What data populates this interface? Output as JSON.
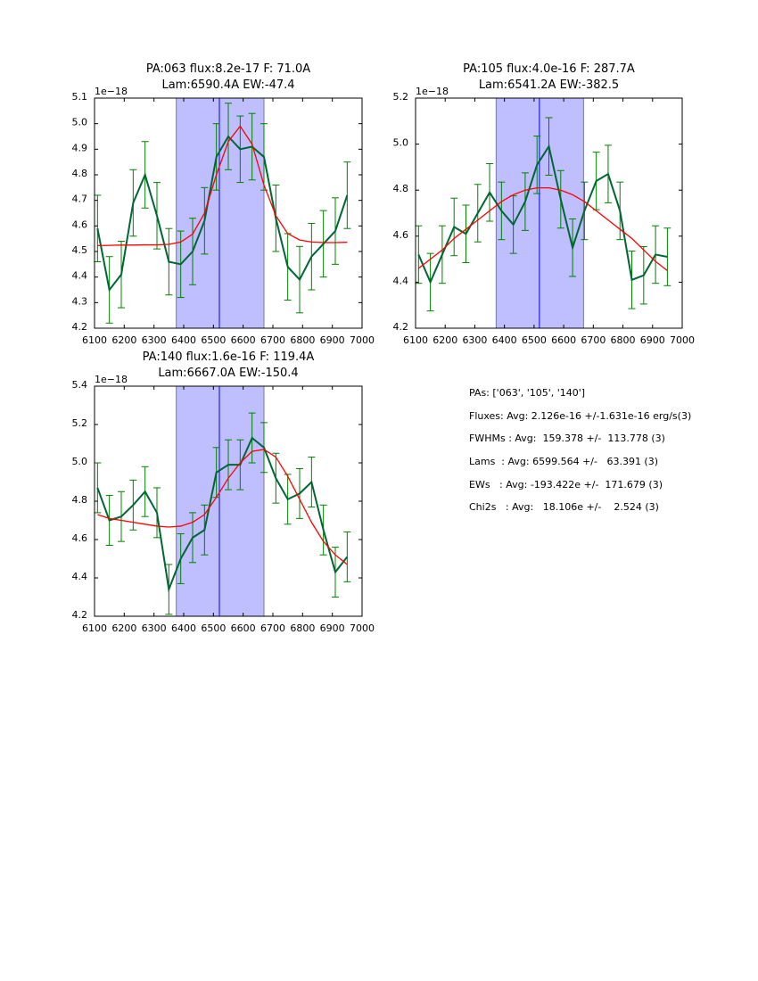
{
  "chart_data": [
    {
      "type": "line",
      "title": [
        "PA:063 flux:8.2e-17 F: 71.0A",
        "Lam:6590.4A EW:-47.4"
      ],
      "offset_label": "1e−18",
      "xlim": [
        6100,
        7000
      ],
      "ylim": [
        4.2,
        5.1
      ],
      "xticks": [
        6100,
        6200,
        6300,
        6400,
        6500,
        6600,
        6700,
        6800,
        6900,
        7000
      ],
      "yticks": [
        4.2,
        4.3,
        4.4,
        4.5,
        4.6,
        4.7,
        4.8,
        4.9,
        5.0,
        5.1
      ],
      "shade": [
        6375,
        6670
      ],
      "vline": 6520,
      "x": [
        6110,
        6150,
        6190,
        6230,
        6270,
        6310,
        6350,
        6390,
        6430,
        6470,
        6510,
        6550,
        6590,
        6630,
        6670,
        6710,
        6750,
        6790,
        6830,
        6870,
        6910,
        6950
      ],
      "series": [
        {
          "name": "data",
          "color": "#006633",
          "values": [
            4.59,
            4.35,
            4.41,
            4.69,
            4.8,
            4.64,
            4.46,
            4.45,
            4.5,
            4.62,
            4.87,
            4.95,
            4.9,
            4.91,
            4.87,
            4.63,
            4.44,
            4.39,
            4.48,
            4.53,
            4.58,
            4.72
          ],
          "err": 0.13
        },
        {
          "name": "fit",
          "color": "#ff0000",
          "values": [
            4.523,
            4.524,
            4.525,
            4.525,
            4.526,
            4.526,
            4.528,
            4.537,
            4.568,
            4.65,
            4.8,
            4.93,
            4.99,
            4.92,
            4.76,
            4.64,
            4.57,
            4.545,
            4.537,
            4.535,
            4.535,
            4.536
          ]
        }
      ]
    },
    {
      "type": "line",
      "title": [
        "PA:105 flux:4.0e-16 F: 287.7A",
        "Lam:6541.2A EW:-382.5"
      ],
      "offset_label": "1e−18",
      "xlim": [
        6100,
        7000
      ],
      "ylim": [
        4.2,
        5.2
      ],
      "xticks": [
        6100,
        6200,
        6300,
        6400,
        6500,
        6600,
        6700,
        6800,
        6900,
        7000
      ],
      "yticks": [
        4.2,
        4.4,
        4.6,
        4.8,
        5.0,
        5.2
      ],
      "shade": [
        6372,
        6667
      ],
      "vline": 6518,
      "x": [
        6110,
        6150,
        6190,
        6230,
        6270,
        6310,
        6350,
        6390,
        6430,
        6470,
        6510,
        6550,
        6590,
        6630,
        6670,
        6710,
        6750,
        6790,
        6830,
        6870,
        6910,
        6950
      ],
      "series": [
        {
          "name": "data",
          "color": "#006633",
          "values": [
            4.52,
            4.4,
            4.52,
            4.64,
            4.61,
            4.7,
            4.79,
            4.71,
            4.65,
            4.75,
            4.91,
            4.99,
            4.76,
            4.55,
            4.71,
            4.84,
            4.87,
            4.71,
            4.41,
            4.43,
            4.52,
            4.51
          ],
          "err": 0.125
        },
        {
          "name": "fit",
          "color": "#ff0000",
          "values": [
            4.46,
            4.5,
            4.54,
            4.59,
            4.63,
            4.67,
            4.71,
            4.75,
            4.78,
            4.8,
            4.81,
            4.81,
            4.8,
            4.78,
            4.75,
            4.71,
            4.67,
            4.63,
            4.59,
            4.54,
            4.49,
            4.45
          ]
        }
      ]
    },
    {
      "type": "line",
      "title": [
        "PA:140 flux:1.6e-16 F: 119.4A",
        "Lam:6667.0A EW:-150.4"
      ],
      "offset_label": "1e−18",
      "xlim": [
        6100,
        7000
      ],
      "ylim": [
        4.2,
        5.4
      ],
      "xticks": [
        6100,
        6200,
        6300,
        6400,
        6500,
        6600,
        6700,
        6800,
        6900,
        7000
      ],
      "yticks": [
        4.2,
        4.4,
        4.6,
        4.8,
        5.0,
        5.2,
        5.4
      ],
      "shade": [
        6375,
        6670
      ],
      "vline": 6520,
      "x": [
        6110,
        6150,
        6190,
        6230,
        6270,
        6310,
        6350,
        6390,
        6430,
        6470,
        6510,
        6550,
        6590,
        6630,
        6670,
        6710,
        6750,
        6790,
        6830,
        6870,
        6910,
        6950
      ],
      "series": [
        {
          "name": "data",
          "color": "#006633",
          "values": [
            4.87,
            4.7,
            4.72,
            4.78,
            4.85,
            4.74,
            4.34,
            4.5,
            4.61,
            4.65,
            4.95,
            4.99,
            4.99,
            5.13,
            5.08,
            4.92,
            4.81,
            4.84,
            4.9,
            4.65,
            4.43,
            4.51
          ],
          "err": 0.13
        },
        {
          "name": "fit",
          "color": "#ff0000",
          "values": [
            4.73,
            4.71,
            4.7,
            4.69,
            4.68,
            4.67,
            4.665,
            4.67,
            4.69,
            4.73,
            4.82,
            4.92,
            5.0,
            5.06,
            5.07,
            5.03,
            4.93,
            4.81,
            4.69,
            4.59,
            4.52,
            4.47
          ]
        }
      ]
    }
  ],
  "summary": {
    "pas": "PAs: ['063', '105', '140']",
    "fluxes": "Fluxes: Avg: 2.126e-16 +/-1.631e-16 erg/s(3)",
    "fwhms": "FWHMs : Avg:  159.378 +/-  113.778 (3)",
    "lams": "Lams  : Avg: 6599.564 +/-   63.391 (3)",
    "ews": "EWs   : Avg: -193.422e +/-  171.679 (3)",
    "chi2s": "Chi2s   : Avg:   18.106e +/-    2.524 (3)"
  }
}
